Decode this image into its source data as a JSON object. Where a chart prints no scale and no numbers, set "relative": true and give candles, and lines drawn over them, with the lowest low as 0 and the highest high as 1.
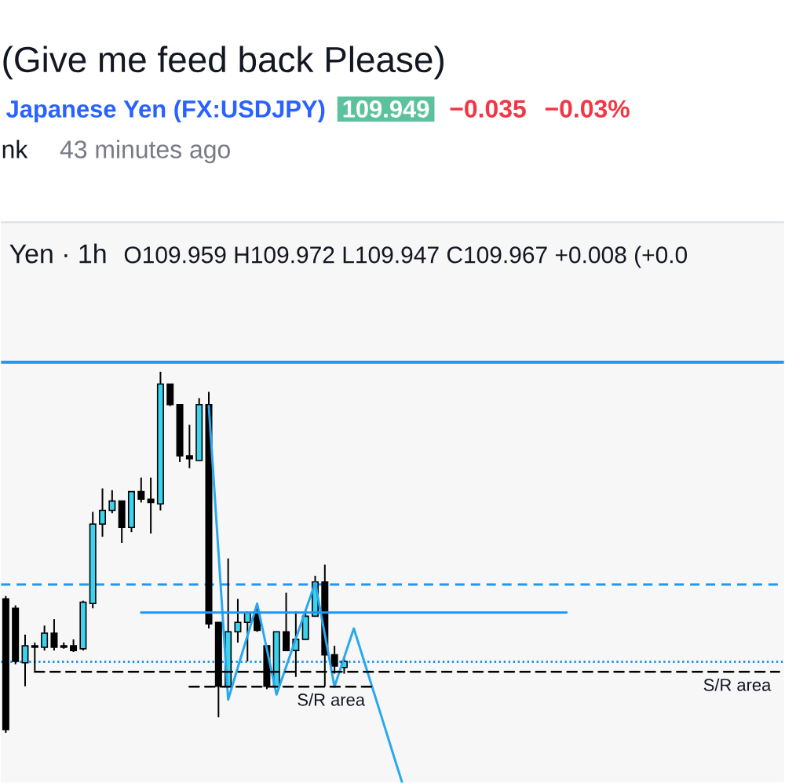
{
  "chart_data": {
    "type": "candlestick",
    "title": "(Give me feed back Please)",
    "subtitle": "Japanese Yen (FX:USDJPY)",
    "annotations": [
      "109.949",
      "−0.035",
      "−0.03%",
      "nk",
      "43 minutes ago",
      "Yen · 1h",
      "O109.959 H109.972 L109.947 C109.967 +0.008 (+0.0"
    ],
    "relative": true,
    "categories": [
      null,
      null,
      null,
      null,
      null,
      null,
      null,
      null,
      null,
      null,
      null,
      null,
      null,
      null,
      null,
      null,
      null,
      null,
      null,
      null,
      null,
      null,
      null,
      null,
      null,
      null,
      null,
      null,
      null,
      null,
      null,
      null,
      null,
      null,
      null,
      null,
      null,
      null,
      null,
      null,
      null,
      null,
      null,
      null,
      null,
      null,
      null,
      null,
      null,
      null,
      null,
      null,
      null,
      null,
      null,
      null,
      null,
      null,
      null,
      null,
      null,
      null,
      null,
      null,
      null,
      null,
      null,
      null,
      null,
      null,
      null,
      null,
      null,
      null,
      null,
      null,
      null,
      null,
      null,
      null,
      null
    ],
    "ohlc": [
      [
        0.371,
        0.379,
        0,
        0.009
      ],
      [
        0.345,
        0.353,
        0.19,
        0.198
      ],
      [
        0.194,
        0.272,
        0.129,
        0.241
      ],
      [
        0.241,
        0.25,
        0.172,
        0.237
      ],
      [
        0.237,
        0.297,
        0.228,
        0.276
      ],
      [
        0.276,
        0.315,
        0.228,
        0.237
      ],
      [
        0.241,
        0.25,
        0.233,
        0.237
      ],
      [
        0.241,
        0.259,
        0.224,
        0.228
      ],
      [
        0.233,
        0.366,
        0.228,
        0.362
      ],
      [
        0.358,
        0.612,
        0.345,
        0.578
      ],
      [
        0.578,
        0.677,
        0.543,
        0.616
      ],
      [
        0.616,
        0.672,
        0.608,
        0.642
      ],
      [
        0.642,
        0.642,
        0.526,
        0.569
      ],
      [
        0.569,
        0.668,
        0.556,
        0.668
      ],
      [
        0.668,
        0.707,
        0.638,
        0.647
      ],
      [
        0.647,
        0.707,
        0.552,
        0.638
      ],
      [
        0.634,
        1.0,
        0.616,
        0.966
      ],
      [
        0.966,
        0.966,
        0.905,
        0.909
      ],
      [
        0.909,
        0.909,
        0.75,
        0.767
      ],
      [
        0.767,
        0.853,
        0.733,
        0.759
      ],
      [
        0.754,
        0.927,
        0.754,
        0.909
      ],
      [
        0.909,
        0.944,
        0.289,
        0.302
      ],
      [
        0.306,
        0.306,
        0.043,
        0.129
      ],
      [
        0.129,
        0.483,
        0.129,
        0.28
      ],
      [
        0.28,
        0.371,
        0.25,
        0.306
      ],
      [
        0.306,
        0.336,
        0.198,
        0.332
      ],
      [
        0.332,
        0.345,
        0.28,
        0.284
      ],
      [
        0.241,
        0.241,
        0.121,
        0.129
      ],
      [
        0.129,
        0.28,
        0.129,
        0.28
      ],
      [
        0.28,
        0.388,
        0.228,
        0.228
      ],
      [
        0.228,
        0.336,
        0.155,
        0.259
      ],
      [
        0.259,
        0.341,
        0.259,
        0.323
      ],
      [
        0.323,
        0.435,
        0.323,
        0.418
      ],
      [
        0.418,
        0.466,
        0.129,
        0.216
      ],
      [
        0.216,
        0.241,
        0.164,
        0.185
      ],
      [
        0.181,
        0.207,
        0.164,
        0.198
      ],
      null,
      null,
      null,
      null,
      null,
      null,
      null,
      null,
      null,
      null,
      null,
      null,
      null,
      null,
      null,
      null,
      null,
      null,
      null,
      null,
      null,
      null,
      null,
      null,
      null,
      null,
      null,
      null,
      null,
      null,
      null,
      null,
      null,
      null,
      null,
      null,
      null,
      null,
      null,
      null,
      null,
      null,
      null,
      null,
      null
    ],
    "colors": [
      "#000000",
      "#000000",
      "#3cd3ee",
      "#000000",
      "#3cd3ee",
      "#000000",
      "#000000",
      "#000000",
      "#3cd3ee",
      "#3cd3ee",
      "#3cd3ee",
      "#3cd3ee",
      "#000000",
      "#3cd3ee",
      "#000000",
      "#000000",
      "#3cd3ee",
      "#000000",
      "#000000",
      "#000000",
      "#3cd3ee",
      "#000000",
      "#000000",
      "#3cd3ee",
      "#3cd3ee",
      "#3cd3ee",
      "#000000",
      "#000000",
      "#3cd3ee",
      "#000000",
      "#3cd3ee",
      "#3cd3ee",
      "#3cd3ee",
      "#000000",
      "#000000",
      "#3cd3ee",
      null,
      null,
      null,
      null,
      null,
      null,
      null,
      null,
      null,
      null,
      null,
      null,
      null,
      null,
      null,
      null,
      null,
      null,
      null,
      null,
      null,
      null,
      null,
      null,
      null,
      null,
      null,
      null,
      null,
      null,
      null,
      null,
      null,
      null,
      null,
      null,
      null,
      null,
      null,
      null,
      null,
      null,
      null,
      null,
      null
    ],
    "series": [
      {
        "type": "line",
        "color": "#29a8f0",
        "values": [
          null,
          null,
          null,
          null,
          null,
          null,
          null,
          null,
          null,
          null,
          null,
          null,
          null,
          null,
          null,
          null,
          null,
          null,
          null,
          null,
          null,
          0.905,
          0.5,
          0.092,
          0.181,
          0.269,
          0.358,
          0.232,
          0.106,
          0.183,
          0.261,
          0.338,
          0.415,
          0.272,
          0.128,
          0.209,
          0.289,
          0.204,
          0.118,
          0.033,
          -0.053,
          -0.138,
          null,
          null,
          null,
          null,
          null,
          null,
          null,
          null,
          null,
          null,
          null,
          null,
          null,
          null,
          null,
          null,
          null,
          null,
          null,
          null,
          null,
          null,
          null,
          null,
          null,
          null,
          null,
          null,
          null,
          null,
          null,
          null,
          null,
          null,
          null,
          null,
          null,
          null,
          null
        ]
      },
      {
        "type": "line",
        "color": "#2196f3",
        "values": [
          null,
          null,
          null,
          null,
          null,
          null,
          null,
          null,
          null,
          null,
          null,
          null,
          null,
          null,
          0.333,
          0.333,
          0.333,
          0.333,
          0.333,
          0.333,
          0.333,
          0.333,
          0.333,
          0.333,
          0.333,
          0.333,
          0.333,
          0.333,
          0.333,
          0.333,
          0.333,
          0.333,
          0.333,
          0.333,
          0.333,
          0.333,
          0.333,
          0.333,
          0.333,
          0.333,
          0.333,
          0.333,
          0.333,
          0.333,
          0.333,
          0.333,
          0.333,
          0.333,
          0.333,
          0.333,
          0.333,
          0.333,
          0.333,
          0.333,
          0.333,
          0.333,
          0.333,
          0.333,
          0.333,
          null,
          null,
          null,
          null,
          null,
          null,
          null,
          null,
          null,
          null,
          null,
          null,
          null,
          null,
          null,
          null,
          null,
          null,
          null,
          null,
          null,
          null
        ]
      },
      {
        "type": "line",
        "name": "S/R area",
        "color": "#000000",
        "line_style": "dashed",
        "values": [
          null,
          null,
          null,
          0.169,
          0.169,
          0.169,
          0.169,
          0.169,
          0.169,
          0.169,
          0.169,
          0.169,
          0.169,
          0.169,
          0.169,
          0.169,
          0.169,
          0.169,
          0.169,
          0.169,
          0.169,
          0.169,
          0.169,
          0.169,
          0.169,
          0.169,
          0.169,
          0.169,
          0.169,
          0.169,
          0.169,
          0.169,
          0.169,
          0.169,
          0.169,
          0.169,
          0.169,
          0.169,
          0.169,
          0.169,
          0.169,
          0.169,
          0.169,
          0.169,
          0.169,
          0.169,
          0.169,
          0.169,
          0.169,
          0.169,
          0.169,
          0.169,
          0.169,
          0.169,
          0.169,
          0.169,
          0.169,
          0.169,
          0.169,
          0.169,
          0.169,
          0.169,
          0.169,
          0.169,
          0.169,
          0.169,
          0.169,
          0.169,
          0.169,
          0.169,
          0.169,
          0.169,
          0.169,
          0.169,
          0.169,
          0.169,
          0.169,
          0.169,
          0.169,
          0.169,
          0.169
        ]
      },
      {
        "type": "line",
        "name": "S/R area",
        "color": "#000000",
        "line_style": "dashed",
        "values": [
          null,
          null,
          null,
          null,
          null,
          null,
          null,
          null,
          null,
          null,
          null,
          null,
          null,
          null,
          null,
          null,
          null,
          null,
          null,
          0.128,
          0.128,
          0.128,
          0.128,
          0.128,
          0.128,
          0.128,
          0.128,
          0.128,
          0.128,
          0.128,
          0.128,
          0.128,
          0.128,
          0.128,
          0.128,
          0.128,
          0.128,
          0.128,
          0.128,
          null,
          null,
          null,
          null,
          null,
          null,
          null,
          null,
          null,
          null,
          null,
          null,
          null,
          null,
          null,
          null,
          null,
          null,
          null,
          null,
          null,
          null,
          null,
          null,
          null,
          null,
          null,
          null,
          null,
          null,
          null,
          null,
          null,
          null,
          null,
          null,
          null,
          null,
          null,
          null,
          null,
          null
        ]
      }
    ],
    "ref_lines": [
      {
        "axis": "y",
        "value": 1.026,
        "color": "#2196f3"
      },
      {
        "axis": "y",
        "value": 0.411,
        "color": "#2196f3",
        "line_style": "dashed"
      },
      {
        "axis": "y",
        "value": 0.197,
        "color": "#2196f3",
        "line_style": "dotted"
      }
    ]
  }
}
